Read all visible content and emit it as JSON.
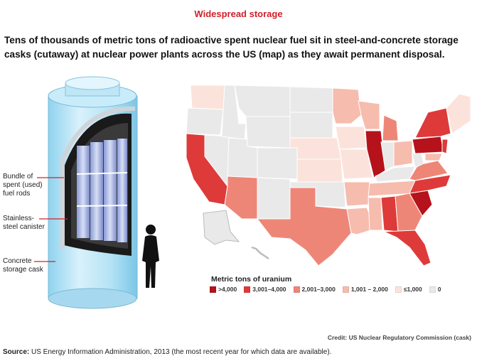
{
  "kicker": "Widespread storage",
  "headline": "Tens of thousands of metric tons of radioactive spent nuclear fuel sit in steel-and-concrete storage casks (cutaway) at nuclear power plants across the US (map) as they await permanent disposal.",
  "cask_labels": {
    "fuel_rods": [
      "Bundle of",
      "spent (used)",
      "fuel rods"
    ],
    "canister": [
      "Stainless-",
      "steel canister"
    ],
    "concrete": [
      "Concrete",
      "storage cask"
    ]
  },
  "legend": {
    "title": "Metric tons of uranium",
    "items": [
      {
        "label": ">4,000",
        "color": "#b5121b"
      },
      {
        "label": "3,001–4,000",
        "color": "#de3a3a"
      },
      {
        "label": "2,001–3,000",
        "color": "#ee8677"
      },
      {
        "label": "1,001 – 2,000",
        "color": "#f6bcae"
      },
      {
        "label": "≤1,000",
        "color": "#fbe3db"
      },
      {
        "label": "0",
        "color": "#e9e9ea"
      }
    ]
  },
  "credit": "Credit: US Nuclear Regulatory Commission (cask)",
  "source": {
    "label": "Source:",
    "text": "US Energy Information Administration, 2013 (the most recent year for which data are available)."
  }
}
